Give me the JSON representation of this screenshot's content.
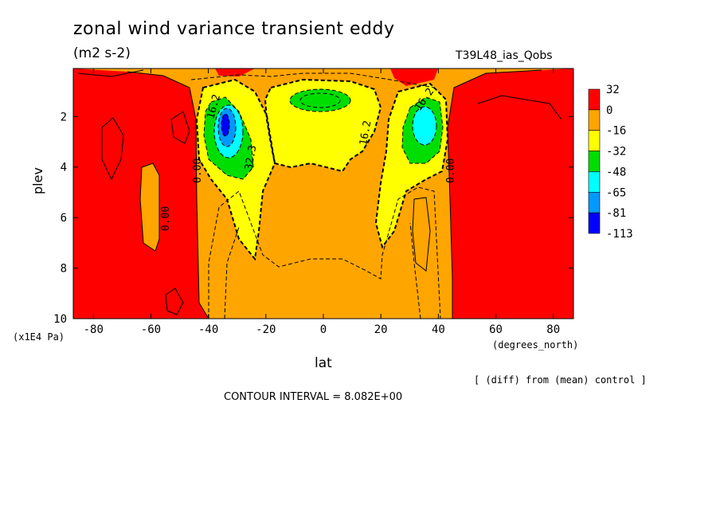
{
  "chart_data": {
    "type": "heatmap",
    "title": "zonal wind variance transient eddy",
    "units": "(m2 s-2)",
    "run_label": "T39L48_ias_Qobs",
    "xlabel": "lat",
    "xunit": "(degrees_north)",
    "ylabel": "plev",
    "yunit": "(x1E4 Pa)",
    "xlim": [
      -87,
      87
    ],
    "ylim": [
      10,
      0.1
    ],
    "x_ticks": [
      -80,
      -60,
      -40,
      -20,
      0,
      20,
      40,
      60,
      80
    ],
    "y_ticks": [
      2,
      4,
      6,
      8,
      10
    ],
    "colorbar": {
      "labels": [
        "32",
        "0",
        "-16",
        "-32",
        "-48",
        "-65",
        "-81",
        "-113"
      ],
      "colors": [
        "#ff0000",
        "#ffa500",
        "#ffff00",
        "#00dd00",
        "#00ffff",
        "#0099ff",
        "#0000ff"
      ]
    },
    "contour_labels": [
      "16.2",
      "32.3",
      "0.00",
      "0.00",
      "16.2",
      "16.2",
      "0.00"
    ],
    "note": "[ (diff) from (mean) control ]",
    "contour_interval": "CONTOUR INTERVAL = 8.082E+00"
  }
}
